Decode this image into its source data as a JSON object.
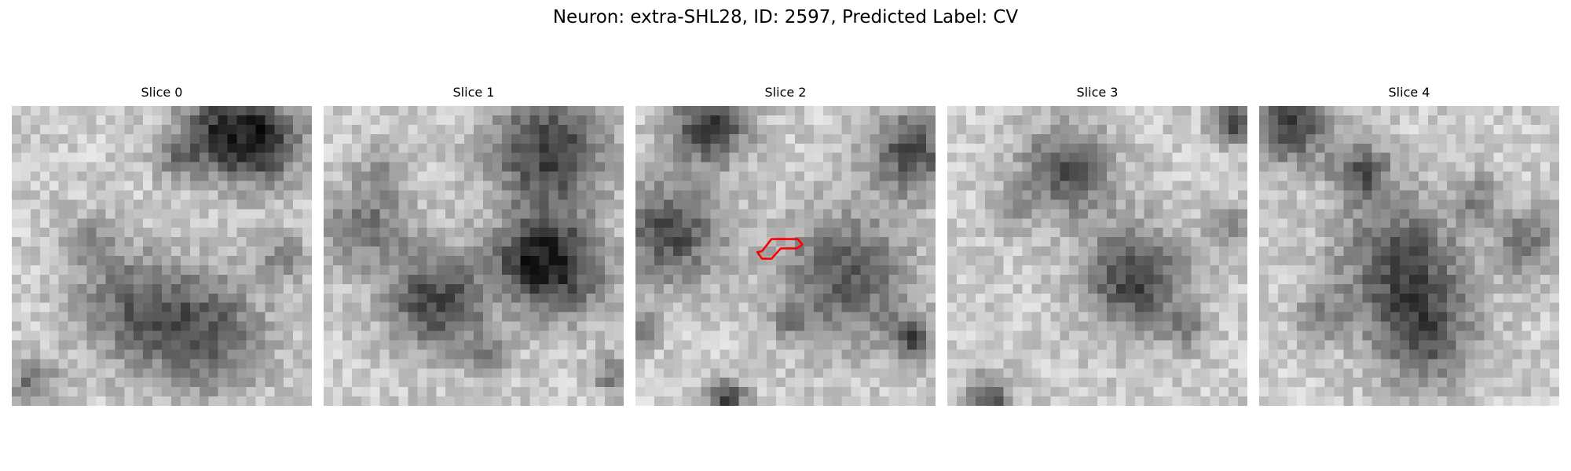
{
  "figure": {
    "title": "Neuron: extra-SHL28, ID: 2597, Predicted Label: CV"
  },
  "panels": [
    {
      "title": "Slice 0",
      "dark_spots": [
        [
          0.83,
          0.12,
          0.1,
          0.95
        ],
        [
          0.68,
          0.08,
          0.1,
          0.75
        ],
        [
          0.4,
          0.67,
          0.13,
          0.6
        ],
        [
          0.65,
          0.76,
          0.14,
          0.7
        ],
        [
          0.9,
          0.5,
          0.06,
          0.4
        ],
        [
          0.07,
          0.93,
          0.06,
          0.55
        ],
        [
          0.25,
          0.45,
          0.07,
          0.35
        ],
        [
          0.55,
          0.18,
          0.05,
          0.4
        ]
      ],
      "outline": false
    },
    {
      "title": "Slice 1",
      "dark_spots": [
        [
          0.75,
          0.15,
          0.14,
          0.9
        ],
        [
          0.8,
          0.55,
          0.12,
          0.7
        ],
        [
          0.7,
          0.5,
          0.09,
          0.75
        ],
        [
          0.38,
          0.65,
          0.12,
          0.85
        ],
        [
          0.14,
          0.4,
          0.1,
          0.55
        ],
        [
          0.2,
          0.2,
          0.06,
          0.35
        ],
        [
          0.55,
          0.83,
          0.05,
          0.35
        ],
        [
          0.97,
          0.9,
          0.05,
          0.5
        ]
      ],
      "outline": false
    },
    {
      "title": "Slice 2",
      "dark_spots": [
        [
          0.25,
          0.06,
          0.09,
          0.95
        ],
        [
          0.12,
          0.42,
          0.12,
          0.8
        ],
        [
          0.92,
          0.15,
          0.1,
          0.8
        ],
        [
          0.7,
          0.57,
          0.15,
          0.75
        ],
        [
          0.92,
          0.77,
          0.05,
          0.75
        ],
        [
          0.3,
          0.98,
          0.05,
          0.8
        ],
        [
          0.03,
          0.75,
          0.04,
          0.5
        ],
        [
          0.52,
          0.72,
          0.05,
          0.3
        ]
      ],
      "outline": true
    },
    {
      "title": "Slice 3",
      "dark_spots": [
        [
          0.4,
          0.22,
          0.11,
          0.75
        ],
        [
          0.63,
          0.58,
          0.12,
          0.9
        ],
        [
          0.95,
          0.05,
          0.05,
          0.85
        ],
        [
          0.14,
          0.97,
          0.05,
          0.8
        ],
        [
          0.95,
          0.4,
          0.05,
          0.45
        ],
        [
          0.8,
          0.75,
          0.05,
          0.35
        ],
        [
          0.2,
          0.35,
          0.05,
          0.3
        ]
      ],
      "outline": false
    },
    {
      "title": "Slice 4",
      "dark_spots": [
        [
          0.1,
          0.06,
          0.09,
          0.95
        ],
        [
          0.34,
          0.22,
          0.07,
          0.7
        ],
        [
          0.47,
          0.52,
          0.15,
          0.75
        ],
        [
          0.55,
          0.77,
          0.12,
          0.7
        ],
        [
          0.9,
          0.45,
          0.08,
          0.55
        ],
        [
          0.2,
          0.7,
          0.06,
          0.4
        ],
        [
          0.72,
          0.3,
          0.05,
          0.4
        ]
      ],
      "outline": false
    }
  ],
  "outline_color": "#ff0000"
}
